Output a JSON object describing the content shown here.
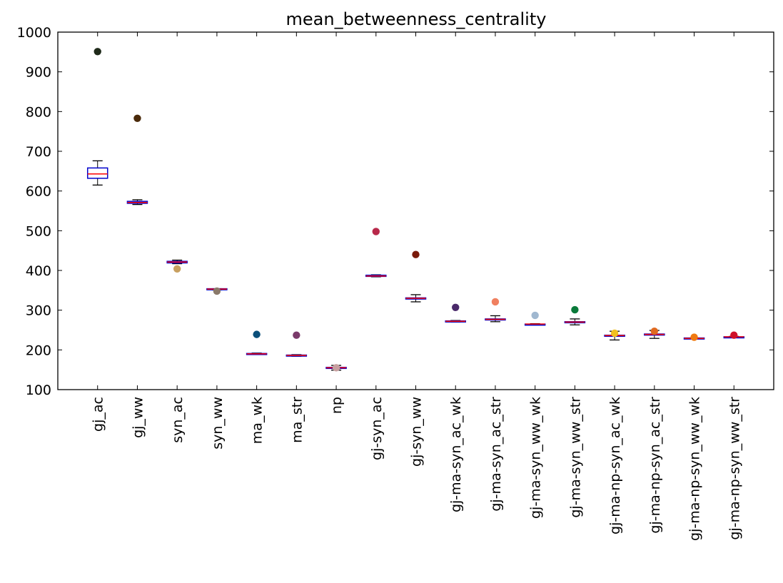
{
  "chart_data": {
    "type": "box",
    "title": "mean_betweenness_centrality",
    "xlabel": "",
    "ylabel": "",
    "ylim": [
      100,
      1000
    ],
    "yticks": [
      100,
      200,
      300,
      400,
      500,
      600,
      700,
      800,
      900,
      1000
    ],
    "grid": false,
    "legend": "none",
    "categories": [
      "gj_ac",
      "gj_ww",
      "syn_ac",
      "syn_ww",
      "ma_wk",
      "ma_str",
      "np",
      "gj-syn_ac",
      "gj-syn_ww",
      "gj-ma-syn_ac_wk",
      "gj-ma-syn_ac_str",
      "gj-ma-syn_ww_wk",
      "gj-ma-syn_ww_str",
      "gj-ma-np-syn_ac_wk",
      "gj-ma-np-syn_ac_str",
      "gj-ma-np-syn_ww_wk",
      "gj-ma-np-syn_ww_str"
    ],
    "boxes": [
      {
        "category": "gj_ac",
        "whisker_low": 615,
        "q1": 632,
        "median": 643,
        "q3": 658,
        "whisker_high": 676,
        "point": 951,
        "point_color": "#1f2a1a"
      },
      {
        "category": "gj_ww",
        "whisker_low": 566,
        "q1": 569,
        "median": 571,
        "q3": 574,
        "whisker_high": 578,
        "point": 783,
        "point_color": "#4a2a0a"
      },
      {
        "category": "syn_ac",
        "whisker_low": 417,
        "q1": 419,
        "median": 421,
        "q3": 423,
        "whisker_high": 426,
        "point": 404,
        "point_color": "#c8a060"
      },
      {
        "category": "syn_ww",
        "whisker_low": 351,
        "q1": 352,
        "median": 353,
        "q3": 354,
        "whisker_high": 354,
        "point": 348,
        "point_color": "#8a7a6a"
      },
      {
        "category": "ma_wk",
        "whisker_low": 189,
        "q1": 190,
        "median": 190,
        "q3": 191,
        "whisker_high": 192,
        "point": 239,
        "point_color": "#0a4f7a"
      },
      {
        "category": "ma_str",
        "whisker_low": 184,
        "q1": 185,
        "median": 186,
        "q3": 187,
        "whisker_high": 188,
        "point": 237,
        "point_color": "#7a3a6a"
      },
      {
        "category": "np",
        "whisker_low": 149,
        "q1": 154,
        "median": 155,
        "q3": 156,
        "whisker_high": 161,
        "point": 155,
        "point_color": "#c8a0a0"
      },
      {
        "category": "gj-syn_ac",
        "whisker_low": 384,
        "q1": 385,
        "median": 386,
        "q3": 388,
        "whisker_high": 389,
        "point": 498,
        "point_color": "#b8284a"
      },
      {
        "category": "gj-syn_ww",
        "whisker_low": 321,
        "q1": 328,
        "median": 330,
        "q3": 331,
        "whisker_high": 339,
        "point": 440,
        "point_color": "#7a1a0a"
      },
      {
        "category": "gj-ma-syn_ac_wk",
        "whisker_low": 270,
        "q1": 271,
        "median": 272,
        "q3": 273,
        "whisker_high": 274,
        "point": 307,
        "point_color": "#4a2a6a"
      },
      {
        "category": "gj-ma-syn_ac_str",
        "whisker_low": 271,
        "q1": 276,
        "median": 277,
        "q3": 278,
        "whisker_high": 286,
        "point": 321,
        "point_color": "#f08060"
      },
      {
        "category": "gj-ma-syn_ww_wk",
        "whisker_low": 263,
        "q1": 264,
        "median": 265,
        "q3": 265,
        "whisker_high": 266,
        "point": 287,
        "point_color": "#a0b8d0"
      },
      {
        "category": "gj-ma-syn_ww_str",
        "whisker_low": 263,
        "q1": 269,
        "median": 270,
        "q3": 271,
        "whisker_high": 278,
        "point": 301,
        "point_color": "#0a7a3a"
      },
      {
        "category": "gj-ma-np-syn_ac_wk",
        "whisker_low": 225,
        "q1": 235,
        "median": 236,
        "q3": 237,
        "whisker_high": 247,
        "point": 242,
        "point_color": "#f0c020"
      },
      {
        "category": "gj-ma-np-syn_ac_str",
        "whisker_low": 229,
        "q1": 238,
        "median": 239,
        "q3": 240,
        "whisker_high": 249,
        "point": 247,
        "point_color": "#e06a20"
      },
      {
        "category": "gj-ma-np-syn_ww_wk",
        "whisker_low": 229,
        "q1": 229,
        "median": 229,
        "q3": 230,
        "whisker_high": 230,
        "point": 232,
        "point_color": "#f07a10"
      },
      {
        "category": "gj-ma-np-syn_ww_str",
        "whisker_low": 232,
        "q1": 232,
        "median": 233,
        "q3": 233,
        "whisker_high": 234,
        "point": 237,
        "point_color": "#d0102a"
      }
    ]
  }
}
